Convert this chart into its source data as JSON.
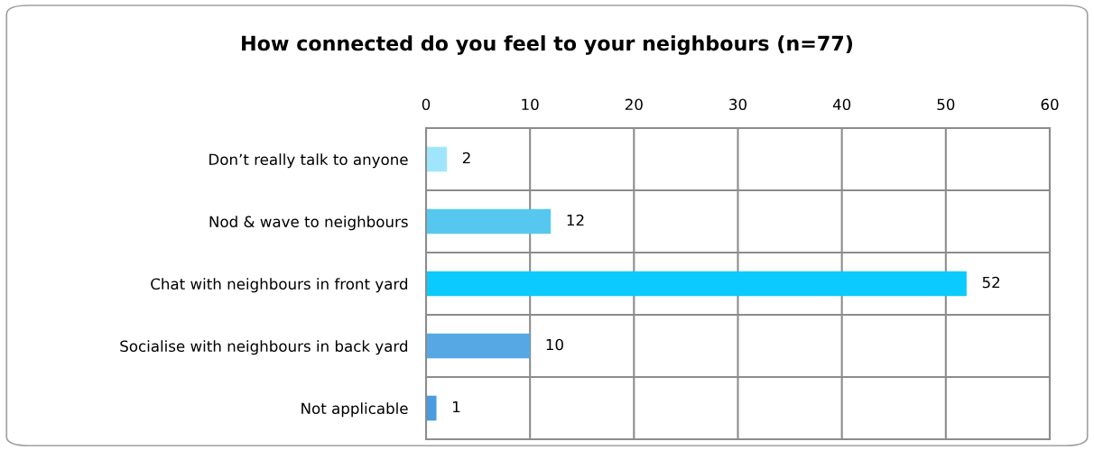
{
  "chart_data": {
    "type": "bar",
    "orientation": "horizontal",
    "title": "How connected do you feel to your neighbours (n=77)",
    "categories": [
      "Don’t really talk to anyone",
      "Nod & wave to neighbours",
      "Chat with neighbours in front yard",
      "Socialise with neighbours in back yard",
      "Not applicable"
    ],
    "values": [
      2,
      12,
      52,
      10,
      1
    ],
    "colors": [
      "#9fe6fd",
      "#56c8ef",
      "#0bcafd",
      "#55a8e3",
      "#4a9be0"
    ],
    "xlim": [
      0,
      60
    ],
    "xticks": [
      0,
      10,
      20,
      30,
      40,
      50,
      60
    ],
    "grid": true,
    "data_labels": true
  }
}
